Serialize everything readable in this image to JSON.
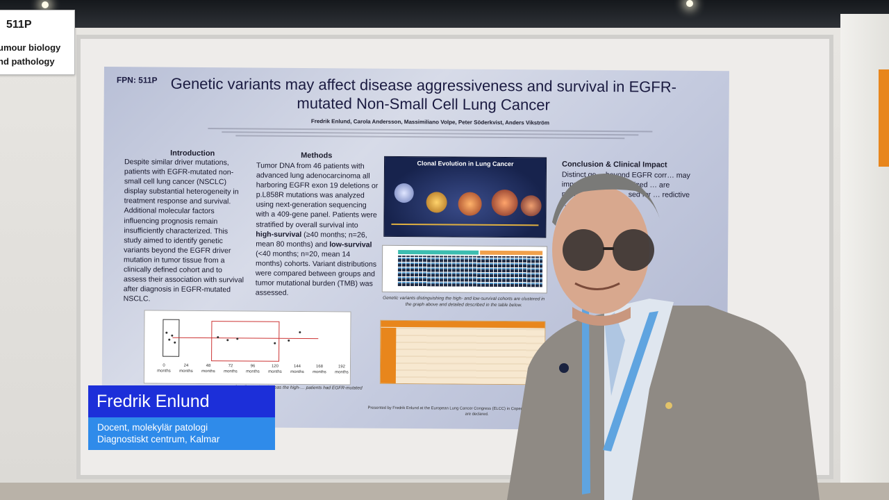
{
  "sign": {
    "code": "511P",
    "line1": "umour biology",
    "line2": "nd pathology"
  },
  "poster": {
    "fpn": "FPN: 511P",
    "title": "Genetic variants may affect disease aggressiveness and survival in EGFR-mutated Non-Small Cell Lung Cancer",
    "authors": "Fredrik Enlund, Carola Andersson, Massimiliano Volpe, Peter Söderkvist, Anders Vikström",
    "introduction": {
      "heading": "Introduction",
      "text": "Despite similar driver mutations, patients with EGFR-mutated non-small cell lung cancer (NSCLC) display substantial heterogeneity in treatment response and survival. Additional molecular factors influencing prognosis remain insufficiently characterized. This study aimed to identify genetic variants beyond the EGFR driver mutation in tumor tissue from a clinically defined cohort and to assess their association with survival after diagnosis in EGFR-mutated NSCLC."
    },
    "methods": {
      "heading": "Methods",
      "text_a": "Tumor DNA from 46 patients with advanced lung adenocarcinoma all harboring EGFR exon 19 deletions or p.L858R mutations was analyzed using next-generation sequencing with a 409-gene panel. Patients were stratified by overall survival into ",
      "high_label": "high-survival",
      "text_b": " (≥40 months; n=26, mean 80 months) and ",
      "low_label": "low-survival",
      "text_c": " (<40 months; n=20, mean 14 months) cohorts. Variant distributions were compared between groups and tumor mutational burden (TMB) was assessed."
    },
    "clonal_title": "Clonal Evolution in Lung Cancer",
    "heatmap_caption": "Genetic variants distinguishing the high- and low-survival cohorts are clustered in the graph above and detailed described in the table below.",
    "conclusion": {
      "heading": "Conclusion & Clinical Impact",
      "text": "Distinct ge… beyond EGFR corr… may improve pr… personalized … are needed … urther … sed for … redictive … e."
    },
    "km_ticks": [
      "0",
      "24",
      "48",
      "72",
      "96",
      "120",
      "144",
      "168",
      "192"
    ],
    "km_unit": "months",
    "figure_caption": "after diagnosis, whereas the high-… patients had EGFR-mutated NSCLC",
    "footer": "Presented by Fredrik Enlund at the European Lung Cancer Congress (ELCC) in Copenhagen 2026. No conflicts of interest are declared."
  },
  "lower_third": {
    "name": "Fredrik Enlund",
    "title_line1": "Docent, molekylär patologi",
    "title_line2": "Diagnostiskt centrum, Kalmar"
  },
  "colors": {
    "name_bar": "#1c2fd9",
    "subtitle_bar": "#2f8bea",
    "accent_orange": "#e8861c"
  }
}
